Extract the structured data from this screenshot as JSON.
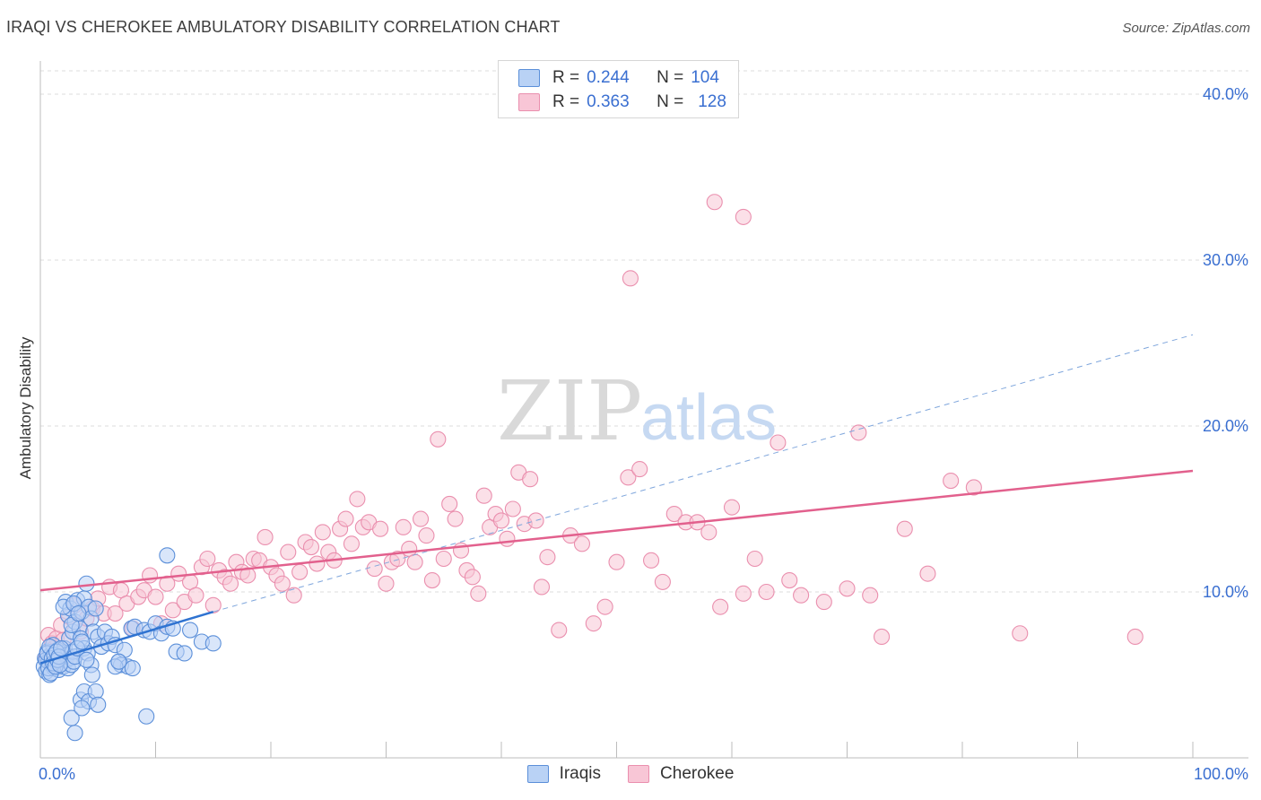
{
  "title": "IRAQI VS CHEROKEE AMBULATORY DISABILITY CORRELATION CHART",
  "source": "Source: ZipAtlas.com",
  "watermark": {
    "zip": "ZIP",
    "atlas": "atlas"
  },
  "legend": {
    "rows": [
      {
        "r_label": "R =",
        "r_value": "0.244",
        "n_label": "N =",
        "n_value": "104"
      },
      {
        "r_label": "R =",
        "r_value": "0.363",
        "n_label": "N =",
        "n_value": "128"
      }
    ]
  },
  "colors": {
    "iraqis_fill": "#b9d2f5",
    "iraqis_stroke": "#5b8fd9",
    "iraqis_line": "#2f73d1",
    "cherokee_fill": "#f8c6d6",
    "cherokee_stroke": "#ea8fae",
    "cherokee_line": "#e2608d",
    "axis_label": "#3a6fd1",
    "grid": "#dedede"
  },
  "chart_data": {
    "type": "scatter",
    "title": "IRAQI VS CHEROKEE AMBULATORY DISABILITY CORRELATION CHART",
    "xlabel": "",
    "ylabel": "Ambulatory Disability",
    "xlim": [
      0,
      100
    ],
    "ylim": [
      0,
      42
    ],
    "x_tick_labels": [
      "0.0%",
      "100.0%"
    ],
    "y_ticks": [
      10,
      20,
      30,
      40
    ],
    "y_tick_labels": [
      "10.0%",
      "20.0%",
      "30.0%",
      "40.0%"
    ],
    "grid": true,
    "legend_position": "top-center",
    "series": [
      {
        "name": "Iraqis",
        "r": 0.244,
        "n": 104,
        "trend": {
          "x": [
            0,
            15
          ],
          "y": [
            5.7,
            8.8
          ],
          "dashed_extension": {
            "x": [
              15,
              100
            ],
            "y": [
              8.8,
              25.5
            ]
          }
        },
        "points": [
          [
            0.3,
            5.5
          ],
          [
            0.4,
            6.0
          ],
          [
            0.5,
            5.2
          ],
          [
            0.6,
            6.4
          ],
          [
            0.7,
            5.8
          ],
          [
            0.8,
            5.0
          ],
          [
            0.9,
            6.2
          ],
          [
            1.0,
            5.6
          ],
          [
            1.1,
            6.8
          ],
          [
            1.2,
            5.4
          ],
          [
            1.3,
            6.0
          ],
          [
            1.4,
            5.8
          ],
          [
            1.5,
            6.5
          ],
          [
            1.6,
            5.3
          ],
          [
            1.7,
            6.1
          ],
          [
            1.8,
            5.7
          ],
          [
            1.9,
            6.3
          ],
          [
            2.0,
            5.5
          ],
          [
            2.1,
            6.6
          ],
          [
            2.2,
            5.9
          ],
          [
            2.3,
            6.2
          ],
          [
            2.4,
            5.4
          ],
          [
            2.5,
            7.2
          ],
          [
            2.6,
            6.0
          ],
          [
            2.7,
            5.6
          ],
          [
            2.8,
            6.4
          ],
          [
            2.9,
            5.8
          ],
          [
            3.0,
            6.1
          ],
          [
            0.5,
            5.9
          ],
          [
            0.6,
            6.3
          ],
          [
            0.7,
            5.4
          ],
          [
            0.8,
            6.7
          ],
          [
            0.9,
            5.1
          ],
          [
            1.0,
            6.0
          ],
          [
            1.1,
            5.7
          ],
          [
            1.2,
            6.2
          ],
          [
            1.3,
            5.5
          ],
          [
            1.4,
            6.4
          ],
          [
            1.5,
            5.9
          ],
          [
            1.6,
            6.1
          ],
          [
            1.7,
            5.6
          ],
          [
            1.8,
            6.6
          ],
          [
            2.2,
            9.4
          ],
          [
            2.4,
            8.6
          ],
          [
            2.6,
            9.0
          ],
          [
            2.8,
            7.6
          ],
          [
            3.0,
            8.2
          ],
          [
            3.2,
            9.5
          ],
          [
            3.4,
            7.8
          ],
          [
            3.6,
            8.8
          ],
          [
            3.8,
            9.6
          ],
          [
            4.0,
            10.5
          ],
          [
            4.2,
            9.1
          ],
          [
            4.4,
            8.4
          ],
          [
            4.6,
            7.6
          ],
          [
            4.8,
            9.0
          ],
          [
            3.5,
            7.2
          ],
          [
            3.8,
            6.6
          ],
          [
            4.1,
            6.3
          ],
          [
            4.4,
            5.6
          ],
          [
            3.2,
            6.6
          ],
          [
            3.6,
            7.0
          ],
          [
            4.0,
            5.9
          ],
          [
            2.7,
            8.0
          ],
          [
            2.0,
            9.1
          ],
          [
            2.9,
            9.3
          ],
          [
            3.3,
            8.7
          ],
          [
            5.0,
            7.3
          ],
          [
            5.3,
            6.7
          ],
          [
            5.6,
            7.6
          ],
          [
            5.9,
            6.9
          ],
          [
            6.2,
            7.3
          ],
          [
            6.5,
            6.8
          ],
          [
            6.8,
            5.8
          ],
          [
            7.0,
            5.6
          ],
          [
            7.3,
            6.5
          ],
          [
            7.6,
            5.5
          ],
          [
            7.9,
            7.8
          ],
          [
            8.2,
            7.9
          ],
          [
            9.0,
            7.7
          ],
          [
            9.5,
            7.6
          ],
          [
            10.0,
            8.1
          ],
          [
            10.5,
            7.5
          ],
          [
            11.0,
            7.9
          ],
          [
            11.5,
            7.8
          ],
          [
            11.8,
            6.4
          ],
          [
            12.5,
            6.3
          ],
          [
            13.0,
            7.7
          ],
          [
            14.0,
            7.0
          ],
          [
            15.0,
            6.9
          ],
          [
            11.0,
            12.2
          ],
          [
            3.5,
            3.5
          ],
          [
            3.8,
            4.0
          ],
          [
            4.2,
            3.4
          ],
          [
            3.0,
            1.5
          ],
          [
            2.7,
            2.4
          ],
          [
            3.6,
            3.0
          ],
          [
            4.5,
            5.0
          ],
          [
            4.8,
            4.0
          ],
          [
            5.0,
            3.2
          ],
          [
            6.5,
            5.5
          ],
          [
            6.8,
            5.8
          ],
          [
            8.0,
            5.4
          ],
          [
            9.2,
            2.5
          ]
        ]
      },
      {
        "name": "Cherokee",
        "r": 0.363,
        "n": 128,
        "trend": {
          "x": [
            0,
            100
          ],
          "y": [
            10.1,
            17.3
          ]
        },
        "points": [
          [
            0.5,
            6.0
          ],
          [
            0.7,
            7.4
          ],
          [
            1.0,
            6.9
          ],
          [
            1.2,
            6.6
          ],
          [
            1.4,
            7.2
          ],
          [
            1.6,
            6.3
          ],
          [
            1.8,
            8.0
          ],
          [
            2.0,
            7.1
          ],
          [
            2.5,
            8.5
          ],
          [
            3.0,
            9.2
          ],
          [
            3.5,
            7.6
          ],
          [
            4.0,
            8.4
          ],
          [
            4.5,
            9.0
          ],
          [
            5.0,
            9.6
          ],
          [
            5.5,
            8.7
          ],
          [
            6.0,
            10.3
          ],
          [
            6.5,
            8.7
          ],
          [
            7.0,
            10.1
          ],
          [
            7.5,
            9.3
          ],
          [
            8.0,
            7.8
          ],
          [
            8.5,
            9.7
          ],
          [
            9.0,
            10.1
          ],
          [
            9.5,
            11.0
          ],
          [
            10.0,
            9.7
          ],
          [
            10.5,
            8.1
          ],
          [
            11.0,
            10.5
          ],
          [
            11.5,
            8.9
          ],
          [
            12.0,
            11.1
          ],
          [
            12.5,
            9.4
          ],
          [
            13.0,
            10.6
          ],
          [
            13.5,
            9.8
          ],
          [
            14.0,
            11.5
          ],
          [
            14.5,
            12.0
          ],
          [
            15.0,
            9.2
          ],
          [
            15.5,
            11.3
          ],
          [
            16.0,
            10.9
          ],
          [
            16.5,
            10.5
          ],
          [
            17.0,
            11.8
          ],
          [
            17.5,
            11.2
          ],
          [
            18.0,
            11.0
          ],
          [
            18.5,
            12.0
          ],
          [
            19.0,
            11.9
          ],
          [
            19.5,
            13.3
          ],
          [
            20.0,
            11.5
          ],
          [
            20.5,
            11.0
          ],
          [
            21.0,
            10.5
          ],
          [
            21.5,
            12.4
          ],
          [
            22.0,
            9.8
          ],
          [
            22.5,
            11.2
          ],
          [
            23.0,
            13.0
          ],
          [
            23.5,
            12.7
          ],
          [
            24.0,
            11.7
          ],
          [
            24.5,
            13.6
          ],
          [
            25.0,
            12.4
          ],
          [
            25.5,
            11.9
          ],
          [
            26.0,
            13.8
          ],
          [
            26.5,
            14.4
          ],
          [
            27.0,
            12.9
          ],
          [
            27.5,
            15.6
          ],
          [
            28.0,
            13.9
          ],
          [
            28.5,
            14.2
          ],
          [
            29.0,
            11.4
          ],
          [
            29.5,
            13.8
          ],
          [
            30.0,
            10.5
          ],
          [
            30.5,
            11.8
          ],
          [
            31.0,
            12.0
          ],
          [
            31.5,
            13.9
          ],
          [
            32.0,
            12.6
          ],
          [
            32.5,
            11.8
          ],
          [
            33.0,
            14.4
          ],
          [
            33.5,
            13.4
          ],
          [
            34.0,
            10.7
          ],
          [
            34.5,
            19.2
          ],
          [
            35.0,
            12.0
          ],
          [
            35.5,
            15.3
          ],
          [
            36.0,
            14.4
          ],
          [
            36.5,
            12.5
          ],
          [
            37.0,
            11.3
          ],
          [
            37.5,
            10.9
          ],
          [
            38.0,
            9.9
          ],
          [
            38.5,
            15.8
          ],
          [
            39.0,
            13.9
          ],
          [
            39.5,
            14.7
          ],
          [
            40.0,
            14.3
          ],
          [
            40.5,
            13.2
          ],
          [
            41.0,
            15.0
          ],
          [
            41.5,
            17.2
          ],
          [
            42.0,
            14.1
          ],
          [
            42.5,
            16.8
          ],
          [
            43.0,
            14.3
          ],
          [
            43.5,
            10.3
          ],
          [
            44.0,
            12.1
          ],
          [
            45.0,
            7.7
          ],
          [
            46.0,
            13.4
          ],
          [
            47.0,
            12.9
          ],
          [
            48.0,
            8.1
          ],
          [
            49.0,
            9.1
          ],
          [
            50.0,
            11.8
          ],
          [
            51.0,
            16.9
          ],
          [
            52.0,
            17.4
          ],
          [
            53.0,
            11.9
          ],
          [
            54.0,
            10.6
          ],
          [
            55.0,
            14.7
          ],
          [
            56.0,
            14.2
          ],
          [
            57.0,
            14.2
          ],
          [
            58.0,
            13.6
          ],
          [
            59.0,
            9.1
          ],
          [
            60.0,
            15.1
          ],
          [
            61.0,
            9.9
          ],
          [
            62.0,
            12.0
          ],
          [
            63.0,
            10.0
          ],
          [
            64.0,
            19.0
          ],
          [
            65.0,
            10.7
          ],
          [
            66.0,
            9.8
          ],
          [
            68.0,
            9.4
          ],
          [
            70.0,
            10.2
          ],
          [
            71.0,
            19.6
          ],
          [
            72.0,
            9.8
          ],
          [
            73.0,
            7.3
          ],
          [
            75.0,
            13.8
          ],
          [
            77.0,
            11.1
          ],
          [
            79.0,
            16.7
          ],
          [
            81.0,
            16.3
          ],
          [
            85.0,
            7.5
          ],
          [
            95.0,
            7.3
          ],
          [
            58.5,
            33.5
          ],
          [
            61.0,
            32.6
          ],
          [
            51.2,
            28.9
          ]
        ]
      }
    ]
  }
}
